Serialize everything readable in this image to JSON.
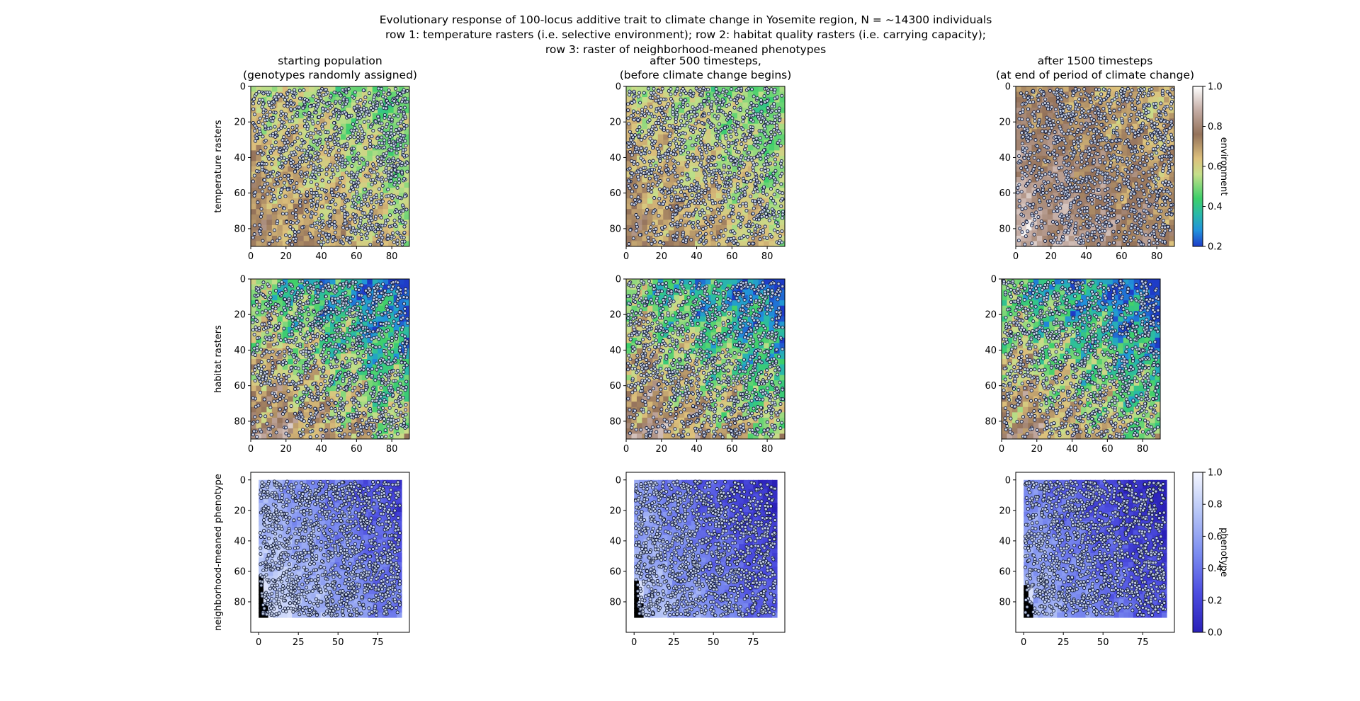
{
  "figure": {
    "title_lines": [
      "Evolutionary response of 100-locus additive trait to climate change in Yosemite region, N = ~14300 individuals",
      "row 1: temperature rasters (i.e. selective environment); row 2: habitat quality rasters (i.e. carrying capacity);",
      "row 3: raster of neighborhood-meaned phenotypes"
    ]
  },
  "chart_data": [
    {
      "type": "heatmap",
      "id": "temp-start",
      "title_lines": [
        "starting population",
        "(genotypes randomly assigned)"
      ],
      "ylabel": "temperature rasters",
      "xlim": [
        0,
        90
      ],
      "ylim": [
        90,
        0
      ],
      "xticks": [
        0,
        20,
        40,
        60,
        80
      ],
      "yticks": [
        0,
        20,
        40,
        60,
        80
      ],
      "cmap": "terrain",
      "scene": "temp",
      "shift": 0,
      "points": true
    },
    {
      "type": "heatmap",
      "id": "temp-500",
      "title_lines": [
        "after 500 timesteps,",
        "(before climate change begins)"
      ],
      "ylabel": "",
      "xlim": [
        0,
        90
      ],
      "ylim": [
        90,
        0
      ],
      "xticks": [
        0,
        20,
        40,
        60,
        80
      ],
      "yticks": [
        0,
        20,
        40,
        60,
        80
      ],
      "cmap": "terrain",
      "scene": "temp",
      "shift": 0,
      "points": true
    },
    {
      "type": "heatmap",
      "id": "temp-1500",
      "title_lines": [
        "after 1500 timesteps",
        "(at end of period of climate change)"
      ],
      "ylabel": "",
      "xlim": [
        0,
        90
      ],
      "ylim": [
        90,
        0
      ],
      "xticks": [
        0,
        20,
        40,
        60,
        80
      ],
      "yticks": [
        0,
        20,
        40,
        60,
        80
      ],
      "cmap": "terrain",
      "scene": "temp",
      "shift": 0.35,
      "points": true,
      "colorbar": {
        "label": "environment",
        "range": [
          0.2,
          1.0
        ],
        "ticks": [
          0.2,
          0.4,
          0.6,
          0.8,
          1.0
        ],
        "cmap": "terrain"
      }
    },
    {
      "type": "heatmap",
      "id": "hab-start",
      "title_lines": [],
      "ylabel": "habitat rasters",
      "xlim": [
        0,
        90
      ],
      "ylim": [
        90,
        0
      ],
      "xticks": [
        0,
        20,
        40,
        60,
        80
      ],
      "yticks": [
        0,
        20,
        40,
        60,
        80
      ],
      "cmap": "terrain",
      "scene": "hab",
      "shift": 0,
      "points": true
    },
    {
      "type": "heatmap",
      "id": "hab-500",
      "title_lines": [],
      "ylabel": "",
      "xlim": [
        0,
        90
      ],
      "ylim": [
        90,
        0
      ],
      "xticks": [
        0,
        20,
        40,
        60,
        80
      ],
      "yticks": [
        0,
        20,
        40,
        60,
        80
      ],
      "cmap": "terrain",
      "scene": "hab",
      "shift": 0,
      "points": true
    },
    {
      "type": "heatmap",
      "id": "hab-1500",
      "title_lines": [],
      "ylabel": "",
      "xlim": [
        0,
        90
      ],
      "ylim": [
        90,
        0
      ],
      "xticks": [
        0,
        20,
        40,
        60,
        80
      ],
      "yticks": [
        0,
        20,
        40,
        60,
        80
      ],
      "cmap": "terrain",
      "scene": "hab",
      "shift": 0.2,
      "points": true
    },
    {
      "type": "heatmap",
      "id": "pheno-start",
      "title_lines": [],
      "ylabel": "neighborhood-meaned phenotype",
      "xlim": [
        -5,
        95
      ],
      "ylim": [
        100,
        -5
      ],
      "xticks": [
        0,
        25,
        50,
        75
      ],
      "yticks": [
        0,
        20,
        40,
        60,
        80
      ],
      "cmap": "phenotype",
      "scene": "pheno",
      "shift": 0,
      "points": true
    },
    {
      "type": "heatmap",
      "id": "pheno-500",
      "title_lines": [],
      "ylabel": "",
      "xlim": [
        -5,
        95
      ],
      "ylim": [
        100,
        -5
      ],
      "xticks": [
        0,
        25,
        50,
        75
      ],
      "yticks": [
        0,
        20,
        40,
        60,
        80
      ],
      "cmap": "phenotype",
      "scene": "pheno",
      "shift": 0.45,
      "points": true
    },
    {
      "type": "heatmap",
      "id": "pheno-1500",
      "title_lines": [],
      "ylabel": "",
      "xlim": [
        -5,
        95
      ],
      "ylim": [
        100,
        -5
      ],
      "xticks": [
        0,
        25,
        50,
        75
      ],
      "yticks": [
        0,
        20,
        40,
        60,
        80
      ],
      "cmap": "phenotype",
      "scene": "pheno",
      "shift": 0.7,
      "points": true,
      "colorbar": {
        "label": "phenotype",
        "range": [
          0.0,
          1.0
        ],
        "ticks": [
          0.0,
          0.2,
          0.4,
          0.6,
          0.8,
          1.0
        ],
        "cmap": "phenotype"
      }
    }
  ],
  "colors": {
    "individual_fill": "#d0dcf2",
    "individual_edge": "#141c3a",
    "missing_cell": "#000000"
  }
}
